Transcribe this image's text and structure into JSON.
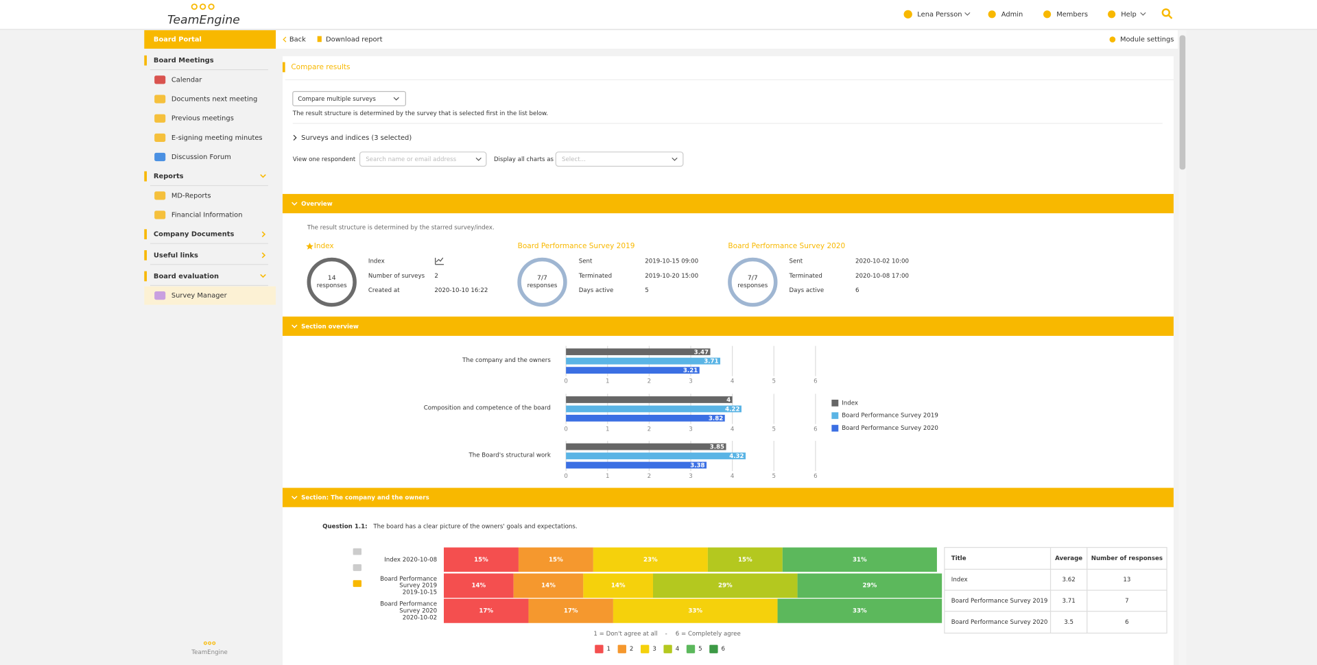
{
  "header": {
    "logo": "TeamEngine",
    "user": "Lena Persson",
    "nav": [
      "Admin",
      "Members",
      "Help"
    ]
  },
  "sidebar": {
    "title": "Board Portal",
    "sections": [
      {
        "title": "Board Meetings",
        "items": [
          "Calendar",
          "Documents next meeting",
          "Previous meetings",
          "E-signing meeting minutes",
          "Discussion Forum"
        ]
      },
      {
        "title": "Reports",
        "items": [
          "MD-Reports",
          "Financial Information"
        ]
      },
      {
        "title": "Company Documents",
        "items": []
      },
      {
        "title": "Useful links",
        "items": []
      },
      {
        "title": "Board evaluation",
        "items": [
          "Survey Manager"
        ]
      }
    ],
    "footer": "TeamEngine"
  },
  "toolbar": {
    "back": "Back",
    "download": "Download report",
    "settings": "Module settings"
  },
  "page": {
    "title": "Compare results",
    "mode": "Compare multiple surveys",
    "note": "The result structure is determined by the survey that is selected first in the list below.",
    "surveys_toggle": "Surveys and indices (3 selected)",
    "respondent_label": "View one respondent",
    "respondent_placeholder": "Search name or email address",
    "display_label": "Display all charts as",
    "display_placeholder": "Select..."
  },
  "overview": {
    "title": "Overview",
    "note": "The result structure is determined by the starred survey/index.",
    "cards": [
      {
        "title": "Index",
        "ring_value": 14,
        "ring_label": "responses",
        "fields": [
          {
            "label": "Index"
          },
          {
            "label": "Number of surveys",
            "value": 2
          },
          {
            "label": "Created at",
            "value": "2020-10-10 16:22"
          }
        ]
      },
      {
        "title": "Board Performance Survey 2019",
        "ring_value": "7/7",
        "ring_label": "responses",
        "fields": [
          {
            "label": "Sent",
            "value": "2019-10-15 09:00"
          },
          {
            "label": "Terminated",
            "value": "2019-10-20 15:00"
          },
          {
            "label": "Days active",
            "value": 5
          }
        ]
      },
      {
        "title": "Board Performance Survey 2020",
        "ring_value": "7/7",
        "ring_label": "responses",
        "fields": [
          {
            "label": "Sent",
            "value": "2020-10-02 10:00"
          },
          {
            "label": "Terminated",
            "value": "2020-10-08 17:00"
          },
          {
            "label": "Days active",
            "value": 6
          }
        ]
      }
    ]
  },
  "section_overview": {
    "title": "Section overview",
    "chart": {
      "type": "bar",
      "categories": [
        "The company and the owners",
        "Composition and competence of the board",
        "The Board's structural work"
      ],
      "series": [
        {
          "name": "Index",
          "color": "#666666",
          "values": [
            3.47,
            4,
            3.85
          ]
        },
        {
          "name": "Board Performance Survey 2019",
          "color": "#5ab4e5",
          "values": [
            3.71,
            4.22,
            4.32
          ]
        },
        {
          "name": "Board Performance Survey 2020",
          "color": "#3b6fe3",
          "values": [
            3.21,
            3.82,
            3.38
          ]
        }
      ],
      "xlim": [
        0,
        6
      ],
      "xticks": [
        0,
        1,
        2,
        3,
        4,
        5,
        6
      ]
    }
  },
  "section": {
    "title": "Section: The company and the owners",
    "question_label": "Question 1.1:",
    "question": "The board has a clear picture of the owners' goals and expectations.",
    "chart": {
      "type": "stacked_bar",
      "categories": [
        [
          "Index 2020-10-08"
        ],
        [
          "Board Performance",
          "Survey 2019",
          "2019-10-15"
        ],
        [
          "Board Performance",
          "Survey 2020",
          "2020-10-02"
        ]
      ],
      "series": [
        {
          "name": "1",
          "color": "#f44f4f",
          "values": [
            15,
            14,
            17
          ],
          "value_labels": [
            "15%",
            "14%",
            "17%"
          ]
        },
        {
          "name": "2",
          "color": "#f5982e",
          "values": [
            15,
            14,
            17
          ],
          "value_labels": [
            "15%",
            "14%",
            "17%"
          ]
        },
        {
          "name": "3",
          "color": "#f5d10c",
          "values": [
            23,
            14,
            33
          ],
          "value_labels": [
            "23%",
            "14%",
            "33%"
          ]
        },
        {
          "name": "4",
          "color": "#b4c81f",
          "values": [
            15,
            29,
            null
          ],
          "value_labels": [
            "15%",
            "29%",
            null
          ]
        },
        {
          "name": "5",
          "color": "#5cb85c",
          "values": [
            31,
            29,
            33
          ],
          "value_labels": [
            "31%",
            "29%",
            "33%"
          ]
        },
        {
          "name": "6",
          "color": "#3d9a46",
          "values": [
            null,
            null,
            null
          ],
          "value_labels": [
            null,
            null,
            null
          ]
        }
      ],
      "xlim": [
        0,
        100
      ],
      "scale_low": "1 = Don't agree at all",
      "scale_separator": "-",
      "scale_high": "6 = Completely agree"
    },
    "table": {
      "header": [
        "Title",
        "Average",
        "Number of responses"
      ],
      "rows": [
        [
          "Index",
          3.62,
          13
        ],
        [
          "Board Performance Survey 2019",
          3.71,
          7
        ],
        [
          "Board Performance Survey 2020",
          3.5,
          6
        ]
      ]
    }
  }
}
